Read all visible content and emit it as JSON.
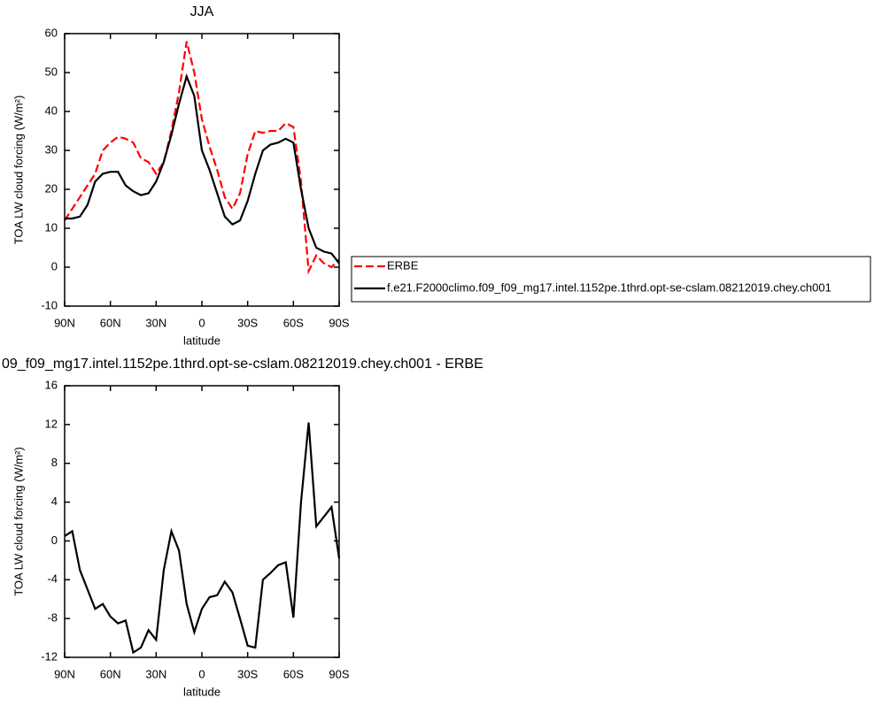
{
  "chart_data": [
    {
      "type": "line",
      "title": "JJA",
      "xlabel": "latitude",
      "ylabel": "TOA LW cloud forcing (W/m²)",
      "x": [
        90,
        85,
        80,
        75,
        70,
        65,
        60,
        55,
        50,
        45,
        40,
        35,
        30,
        25,
        20,
        15,
        10,
        5,
        0,
        -5,
        -10,
        -15,
        -20,
        -25,
        -30,
        -35,
        -40,
        -45,
        -50,
        -55,
        -60,
        -65,
        -70,
        -75,
        -80,
        -85,
        -90
      ],
      "series": [
        {
          "name": "ERBE",
          "color": "#ff0000",
          "line_style": "dashed",
          "values": [
            12,
            15,
            18,
            21,
            24,
            30,
            32,
            33.5,
            33,
            32,
            28,
            27,
            24,
            27,
            35,
            45,
            58,
            50,
            38,
            31,
            25,
            18,
            15,
            19,
            29,
            35,
            34.5,
            35,
            35,
            37,
            36,
            22,
            -1,
            3,
            1,
            0,
            2
          ]
        },
        {
          "name": "f.e21.F2000climo.f09_f09_mg17.intel.1152pe.1thrd.opt-se-cslam.08212019.chey.ch001",
          "color": "#000000",
          "line_style": "solid",
          "values": [
            12.5,
            12.5,
            13,
            16,
            22,
            24,
            24.5,
            24.5,
            21,
            19.5,
            18.5,
            19,
            22,
            27,
            34,
            42,
            49,
            44,
            30,
            25,
            19,
            13,
            11,
            12,
            17,
            24,
            30,
            31.5,
            32,
            33,
            32,
            20,
            10,
            5,
            4,
            3.5,
            1
          ]
        }
      ],
      "xlim": [
        90,
        -90
      ],
      "xticks": [
        {
          "value": 90,
          "label": "90N"
        },
        {
          "value": 60,
          "label": "60N"
        },
        {
          "value": 30,
          "label": "30N"
        },
        0,
        {
          "value": -30,
          "label": "30S"
        },
        {
          "value": -60,
          "label": "60S"
        },
        {
          "value": -90,
          "label": "90S"
        }
      ],
      "ylim": [
        -10,
        60
      ],
      "yticks": [
        -10,
        0,
        10,
        20,
        30,
        40,
        50,
        60
      ],
      "legend": "right"
    },
    {
      "type": "line",
      "title": "09_f09_mg17.intel.1152pe.1thrd.opt-se-cslam.08212019.chey.ch001 - ERBE",
      "xlabel": "latitude",
      "ylabel": "TOA LW cloud forcing (W/m²)",
      "x": [
        90,
        85,
        80,
        75,
        70,
        65,
        60,
        55,
        50,
        45,
        40,
        35,
        30,
        25,
        20,
        15,
        10,
        5,
        0,
        -5,
        -10,
        -15,
        -20,
        -25,
        -30,
        -35,
        -40,
        -45,
        -50,
        -55,
        -60,
        -65,
        -70,
        -75,
        -80,
        -85,
        -90
      ],
      "color": "#000000",
      "values": [
        0.5,
        1,
        -3,
        -5,
        -7,
        -6.5,
        -7.8,
        -8.5,
        -8.2,
        -11.5,
        -11,
        -9.2,
        -10.2,
        -3,
        1,
        -1,
        -6.5,
        -9.4,
        -7,
        -5.8,
        -5.6,
        -4.2,
        -5.3,
        -8,
        -10.8,
        -11,
        -4,
        -3.3,
        -2.5,
        -2.2,
        -7.9,
        4,
        12.2,
        1.5,
        2.5,
        3.5,
        -1.8
      ],
      "xlim": [
        90,
        -90
      ],
      "xticks": [
        {
          "value": 90,
          "label": "90N"
        },
        {
          "value": 60,
          "label": "60N"
        },
        {
          "value": 30,
          "label": "30N"
        },
        0,
        {
          "value": -30,
          "label": "30S"
        },
        {
          "value": -60,
          "label": "60S"
        },
        {
          "value": -90,
          "label": "90S"
        }
      ],
      "ylim": [
        -12,
        16
      ],
      "yticks": [
        -12,
        -8,
        -4,
        0,
        4,
        8,
        12,
        16
      ]
    }
  ]
}
